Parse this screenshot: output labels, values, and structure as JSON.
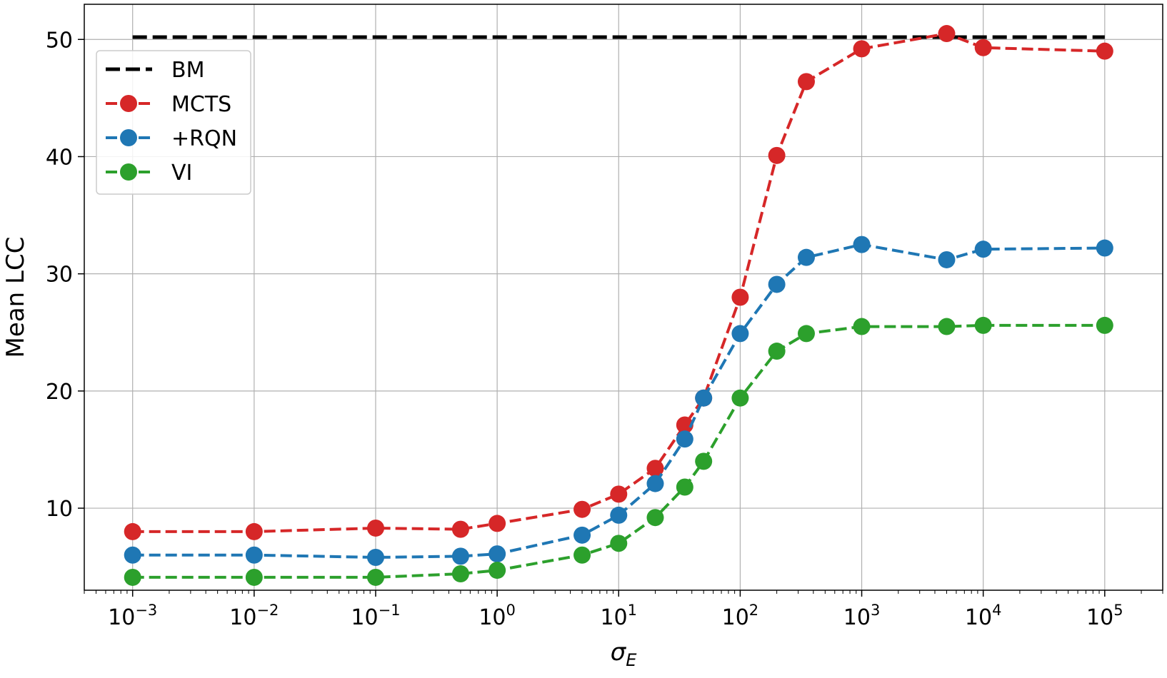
{
  "chart_data": {
    "type": "line",
    "xlabel": "σ_E",
    "ylabel": "Mean LCC",
    "xscale": "log",
    "xlim": [
      0.0004,
      300000
    ],
    "ylim": [
      3.0,
      53.0
    ],
    "grid": true,
    "legend_position": "top-left",
    "xtick_exponents": [
      "−3",
      "−2",
      "−1",
      "0",
      "1",
      "2",
      "3",
      "4",
      "5"
    ],
    "xtick_values": [
      0.001,
      0.01,
      0.1,
      1,
      10,
      100,
      1000,
      10000,
      100000
    ],
    "yticks": [
      10,
      20,
      30,
      40,
      50
    ],
    "x": [
      0.001,
      0.01,
      0.1,
      0.5,
      1,
      5,
      10,
      20,
      35,
      50,
      100,
      200,
      350,
      1000,
      5000,
      10000,
      100000
    ],
    "series": [
      {
        "name": "BM",
        "style": "dashed-no-marker",
        "color": "#000000",
        "x": [
          0.001,
          100000
        ],
        "values": [
          50.2,
          50.2
        ]
      },
      {
        "name": "MCTS",
        "style": "dashed-marker",
        "color": "#d62728",
        "values": [
          8.0,
          8.0,
          8.3,
          8.2,
          8.7,
          9.9,
          11.2,
          13.4,
          17.1,
          19.4,
          28.0,
          40.1,
          46.4,
          49.2,
          50.5,
          49.3,
          49.0
        ]
      },
      {
        "name": "+RQN",
        "style": "dashed-marker",
        "color": "#1f77b4",
        "values": [
          6.0,
          6.0,
          5.8,
          5.9,
          6.1,
          7.7,
          9.4,
          12.1,
          15.9,
          19.4,
          24.9,
          29.1,
          31.4,
          32.5,
          31.2,
          32.1,
          32.2
        ]
      },
      {
        "name": "VI",
        "style": "dashed-marker",
        "color": "#2ca02c",
        "values": [
          4.1,
          4.1,
          4.1,
          4.4,
          4.7,
          6.0,
          7.0,
          9.2,
          11.8,
          14.0,
          19.4,
          23.4,
          24.9,
          25.5,
          25.5,
          25.6,
          25.6
        ]
      }
    ]
  }
}
